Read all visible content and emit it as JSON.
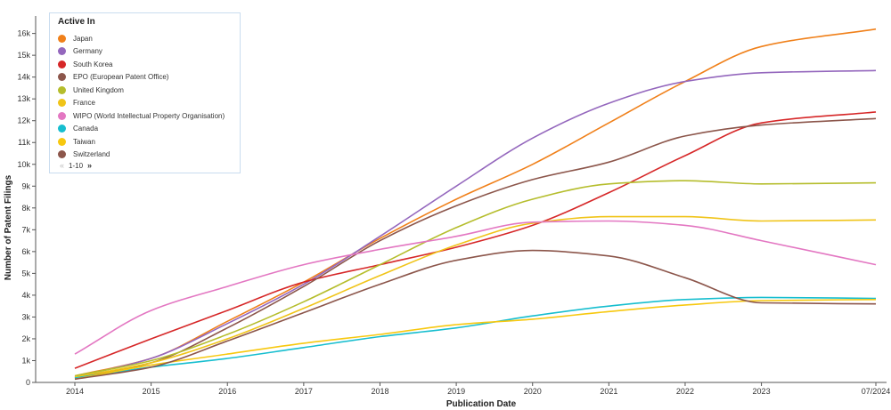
{
  "chart_data": {
    "type": "line",
    "xlabel": "Publication Date",
    "ylabel": "Number of Patent Filings",
    "x": [
      2014,
      2015,
      2016,
      2017,
      2018,
      2019,
      2020,
      2021,
      2022,
      2023,
      2024.5
    ],
    "x_tick_labels": [
      "2014",
      "2015",
      "2016",
      "2017",
      "2018",
      "2019",
      "2020",
      "2021",
      "2022",
      "2023",
      "07/2024"
    ],
    "y_tick_values": [
      0,
      1000,
      2000,
      3000,
      4000,
      5000,
      6000,
      7000,
      8000,
      9000,
      10000,
      11000,
      12000,
      13000,
      14000,
      15000,
      16000
    ],
    "y_tick_labels": [
      "0",
      "1k",
      "2k",
      "3k",
      "4k",
      "5k",
      "6k",
      "7k",
      "8k",
      "9k",
      "10k",
      "11k",
      "12k",
      "13k",
      "14k",
      "15k",
      "16k"
    ],
    "ylim": [
      0,
      16800
    ],
    "grid": false,
    "legend": {
      "title": "Active In",
      "placement": "top-left",
      "pager": "1-10"
    },
    "series": [
      {
        "name": "Japan",
        "color": "#f0801a",
        "values": [
          300,
          1100,
          2800,
          4600,
          6600,
          8400,
          10000,
          11900,
          13800,
          15400,
          16200
        ]
      },
      {
        "name": "Germany",
        "color": "#9467bd",
        "values": [
          250,
          1100,
          2700,
          4500,
          6700,
          9000,
          11200,
          12800,
          13800,
          14200,
          14300
        ]
      },
      {
        "name": "South Korea",
        "color": "#d62728",
        "values": [
          650,
          2000,
          3300,
          4600,
          5400,
          6200,
          7200,
          8700,
          10400,
          11900,
          12400
        ]
      },
      {
        "name": "EPO (European Patent Office)",
        "color": "#8c564b",
        "values": [
          200,
          900,
          2500,
          4400,
          6500,
          8100,
          9300,
          10100,
          11300,
          11800,
          12100
        ]
      },
      {
        "name": "United Kingdom",
        "color": "#b5bd2c",
        "values": [
          300,
          1000,
          2200,
          3700,
          5400,
          7100,
          8400,
          9100,
          9250,
          9100,
          9150
        ]
      },
      {
        "name": "France",
        "color": "#f0c419",
        "values": [
          250,
          900,
          2000,
          3400,
          4900,
          6300,
          7300,
          7600,
          7600,
          7400,
          7450
        ]
      },
      {
        "name": "WIPO (World Intellectual Property Organisation)",
        "color": "#e377c2",
        "values": [
          1300,
          3300,
          4400,
          5400,
          6100,
          6700,
          7350,
          7400,
          7200,
          6500,
          5400
        ]
      },
      {
        "name": "Canada",
        "color": "#17becf",
        "values": [
          200,
          700,
          1100,
          1600,
          2100,
          2500,
          3050,
          3500,
          3800,
          3900,
          3850
        ]
      },
      {
        "name": "Taiwan",
        "color": "#f7c80f",
        "values": [
          150,
          800,
          1300,
          1800,
          2200,
          2650,
          2900,
          3250,
          3550,
          3750,
          3800
        ]
      },
      {
        "name": "Switzerland",
        "color": "#8c564b",
        "values": [
          150,
          700,
          1900,
          3200,
          4500,
          5600,
          6050,
          5800,
          4800,
          3650,
          3600
        ]
      }
    ]
  }
}
